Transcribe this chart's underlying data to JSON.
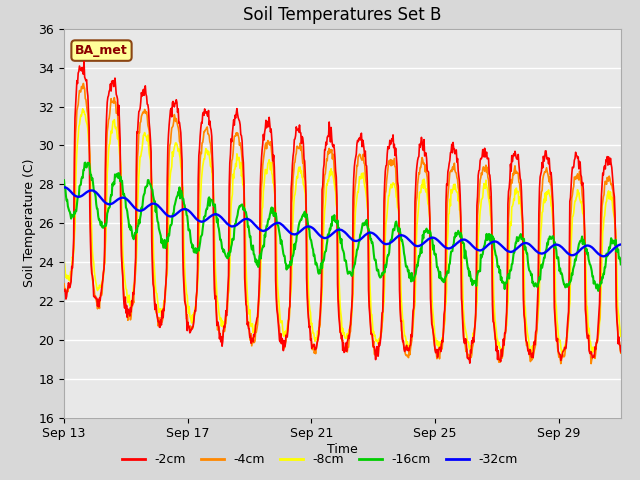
{
  "title": "Soil Temperatures Set B",
  "xlabel": "Time",
  "ylabel": "Soil Temperature (C)",
  "ylim": [
    16,
    36
  ],
  "yticks": [
    16,
    18,
    20,
    22,
    24,
    26,
    28,
    30,
    32,
    34,
    36
  ],
  "annotation": "BA_met",
  "bg_color": "#d8d8d8",
  "plot_bg_color": "#e8e8e8",
  "colors": {
    "-2cm": "#ff0000",
    "-4cm": "#ff8800",
    "-8cm": "#ffff00",
    "-16cm": "#00cc00",
    "-32cm": "#0000ff"
  },
  "legend_labels": [
    "-2cm",
    "-4cm",
    "-8cm",
    "-16cm",
    "-32cm"
  ],
  "xtick_labels": [
    "Sep 13",
    "Sep 17",
    "Sep 21",
    "Sep 25",
    "Sep 29"
  ],
  "xtick_positions": [
    0,
    4,
    8,
    12,
    16
  ],
  "n_days": 18,
  "points_per_day": 48
}
